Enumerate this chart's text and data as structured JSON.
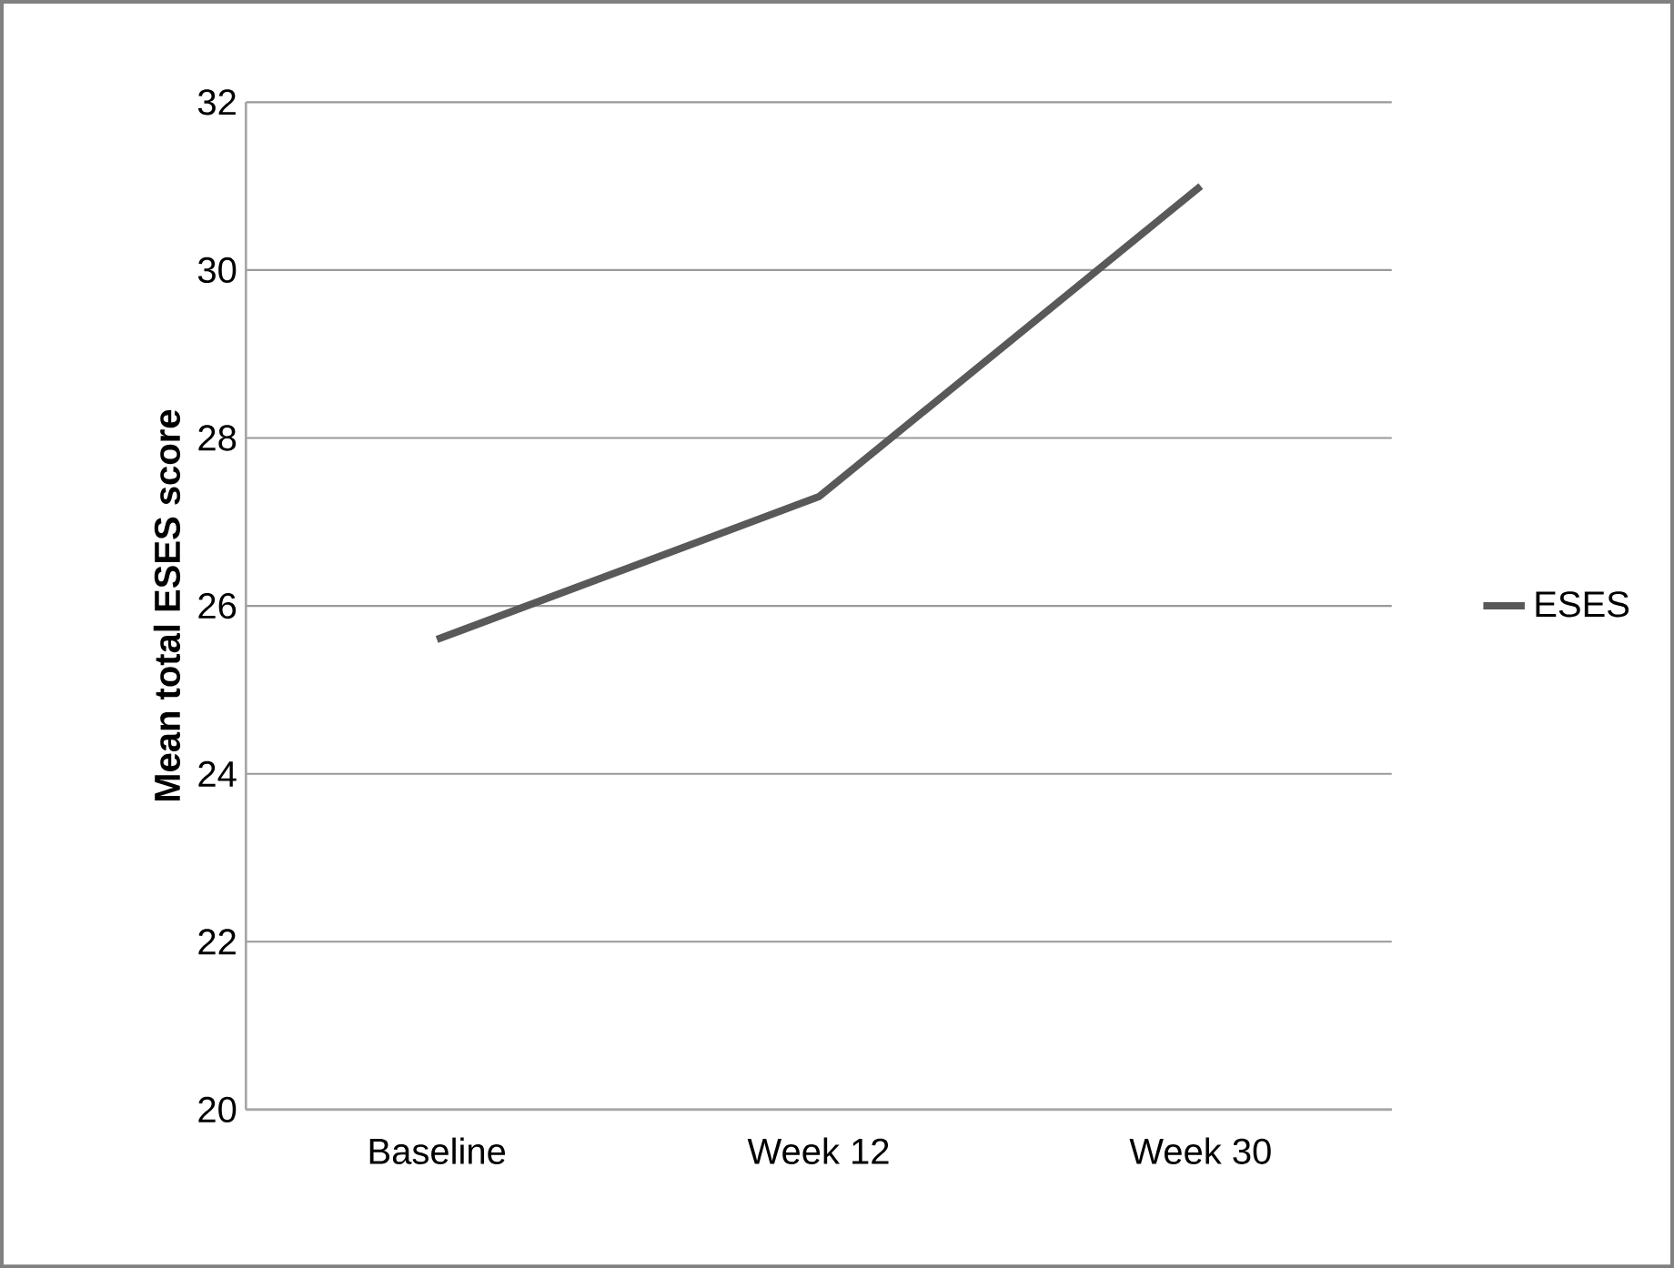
{
  "chart_data": {
    "type": "line",
    "ylabel": "Mean total ESES score",
    "categories": [
      "Baseline",
      "Week 12",
      "Week 30"
    ],
    "series": [
      {
        "name": "ESES",
        "color": "#595959",
        "values": [
          25.6,
          27.3,
          31.0
        ]
      }
    ],
    "ylim": [
      20,
      32
    ],
    "yticks": [
      20,
      22,
      24,
      26,
      28,
      30,
      32
    ],
    "grid": "y",
    "legend": "right",
    "marker": "none",
    "line_style": "solid"
  }
}
